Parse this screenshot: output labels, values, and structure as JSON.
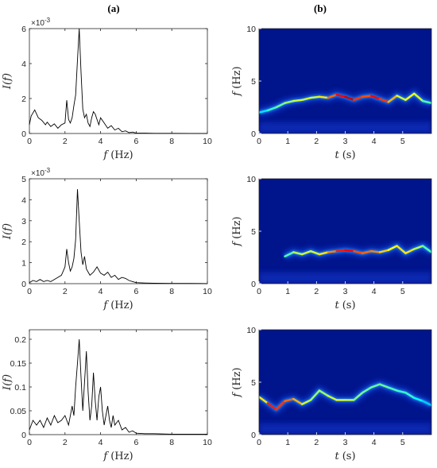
{
  "column_labels": {
    "left": "(a)",
    "right": "(b)"
  },
  "chart_data": [
    {
      "type": "line",
      "panel": "a1",
      "xlabel_sym": "f",
      "xlabel_unit": "(Hz)",
      "ylabel_sym": "I",
      "ylabel_arg": "(f)",
      "xlim": [
        0,
        10
      ],
      "ylim": [
        0,
        6
      ],
      "xticks": [
        "0",
        "2",
        "4",
        "6",
        "8",
        "10"
      ],
      "yticks": [
        "0",
        "2",
        "4",
        "6"
      ],
      "multiplier_base": "×10",
      "multiplier_exp": "-3",
      "line_color": "#000000",
      "x": [
        0,
        0.1,
        0.3,
        0.5,
        0.7,
        0.9,
        1.0,
        1.2,
        1.4,
        1.6,
        1.8,
        2.0,
        2.1,
        2.2,
        2.3,
        2.4,
        2.5,
        2.6,
        2.7,
        2.8,
        2.9,
        3.0,
        3.1,
        3.2,
        3.3,
        3.4,
        3.5,
        3.6,
        3.7,
        3.8,
        3.9,
        4.0,
        4.2,
        4.4,
        4.6,
        4.8,
        5.0,
        5.2,
        5.4,
        5.6,
        5.8,
        6.0,
        6.5,
        7,
        8,
        9,
        10
      ],
      "y": [
        0.5,
        1.0,
        1.35,
        0.9,
        0.75,
        0.5,
        0.65,
        0.4,
        0.55,
        0.3,
        0.5,
        0.6,
        1.9,
        0.8,
        0.6,
        0.9,
        1.6,
        2.2,
        4.2,
        6.0,
        3.5,
        1.4,
        0.9,
        1.1,
        0.6,
        0.4,
        0.9,
        1.25,
        1.1,
        0.8,
        0.5,
        0.9,
        0.6,
        0.3,
        0.45,
        0.2,
        0.3,
        0.1,
        0.15,
        0.05,
        0.08,
        0.02,
        0.02,
        0.01,
        0.01,
        0.005,
        0.005
      ]
    },
    {
      "type": "line",
      "panel": "a2",
      "xlabel_sym": "f",
      "xlabel_unit": "(Hz)",
      "ylabel_sym": "I",
      "ylabel_arg": "(f)",
      "xlim": [
        0,
        10
      ],
      "ylim": [
        0,
        5
      ],
      "xticks": [
        "0",
        "2",
        "4",
        "6",
        "8",
        "10"
      ],
      "yticks": [
        "0",
        "1",
        "2",
        "3",
        "4",
        "5"
      ],
      "multiplier_base": "×10",
      "multiplier_exp": "-3",
      "line_color": "#000000",
      "x": [
        0,
        0.2,
        0.4,
        0.6,
        0.8,
        1.0,
        1.2,
        1.4,
        1.6,
        1.8,
        2.0,
        2.1,
        2.2,
        2.3,
        2.4,
        2.5,
        2.6,
        2.7,
        2.8,
        2.9,
        3.0,
        3.1,
        3.2,
        3.4,
        3.6,
        3.8,
        4.0,
        4.2,
        4.4,
        4.6,
        4.8,
        5.0,
        5.2,
        5.4,
        5.6,
        5.8,
        6.0,
        6.5,
        7,
        8,
        9,
        10
      ],
      "y": [
        0.05,
        0.15,
        0.1,
        0.2,
        0.1,
        0.15,
        0.1,
        0.2,
        0.3,
        0.4,
        0.8,
        1.65,
        1.0,
        0.6,
        0.8,
        1.2,
        2.1,
        4.5,
        3.0,
        1.5,
        0.9,
        1.3,
        0.7,
        0.4,
        0.55,
        0.8,
        0.5,
        0.4,
        0.55,
        0.3,
        0.4,
        0.2,
        0.3,
        0.25,
        0.15,
        0.1,
        0.05,
        0.03,
        0.02,
        0.01,
        0.01,
        0.005
      ]
    },
    {
      "type": "line",
      "panel": "a3",
      "xlabel_sym": "f",
      "xlabel_unit": "(Hz)",
      "ylabel_sym": "I",
      "ylabel_arg": "(f)",
      "xlim": [
        0,
        10
      ],
      "ylim": [
        0,
        0.22
      ],
      "xticks": [
        "0",
        "2",
        "4",
        "6",
        "8",
        "10"
      ],
      "yticks": [
        "0",
        "0.05",
        "0.1",
        "0.15",
        "0.2"
      ],
      "ytick_values": [
        0,
        0.05,
        0.1,
        0.15,
        0.2
      ],
      "line_color": "#000000",
      "x": [
        0,
        0.2,
        0.4,
        0.6,
        0.8,
        1.0,
        1.2,
        1.4,
        1.6,
        1.8,
        2.0,
        2.2,
        2.4,
        2.5,
        2.6,
        2.7,
        2.8,
        2.9,
        3.0,
        3.1,
        3.2,
        3.3,
        3.4,
        3.5,
        3.6,
        3.7,
        3.8,
        3.9,
        4.0,
        4.1,
        4.2,
        4.3,
        4.4,
        4.5,
        4.6,
        4.7,
        4.8,
        5.0,
        5.2,
        5.4,
        5.6,
        5.8,
        6.0,
        6.5,
        7,
        8,
        9,
        10
      ],
      "y": [
        0.01,
        0.03,
        0.02,
        0.03,
        0.015,
        0.035,
        0.02,
        0.04,
        0.025,
        0.03,
        0.04,
        0.02,
        0.06,
        0.04,
        0.1,
        0.15,
        0.2,
        0.12,
        0.05,
        0.11,
        0.175,
        0.09,
        0.03,
        0.06,
        0.13,
        0.07,
        0.03,
        0.08,
        0.1,
        0.05,
        0.02,
        0.04,
        0.06,
        0.03,
        0.015,
        0.04,
        0.02,
        0.03,
        0.01,
        0.015,
        0.005,
        0.008,
        0.003,
        0.002,
        0.002,
        0.001,
        0.001,
        0.001
      ]
    },
    {
      "type": "heatmap",
      "panel": "b1",
      "xlabel_sym": "t",
      "xlabel_unit": "(s)",
      "ylabel_sym": "f",
      "ylabel_unit": "(Hz)",
      "xlim": [
        0,
        6
      ],
      "ylim": [
        0,
        10
      ],
      "xticks": [
        "0",
        "1",
        "2",
        "3",
        "4",
        "5"
      ],
      "yticks": [
        "0",
        "5",
        "10"
      ],
      "ridge_t": [
        0,
        0.3,
        0.6,
        0.9,
        1.2,
        1.5,
        1.8,
        2.1,
        2.4,
        2.7,
        3.0,
        3.3,
        3.6,
        3.9,
        4.2,
        4.5,
        4.8,
        5.1,
        5.4,
        5.7,
        6.0
      ],
      "ridge_f": [
        2.0,
        2.2,
        2.5,
        2.9,
        3.1,
        3.2,
        3.4,
        3.5,
        3.4,
        3.7,
        3.5,
        3.2,
        3.5,
        3.6,
        3.3,
        3.0,
        3.6,
        3.2,
        3.8,
        3.1,
        2.9
      ],
      "ridge_intensity": [
        0.3,
        0.4,
        0.45,
        0.5,
        0.55,
        0.6,
        0.55,
        0.6,
        0.7,
        0.85,
        0.9,
        0.95,
        0.7,
        0.9,
        0.85,
        0.8,
        0.6,
        0.55,
        0.7,
        0.5,
        0.4
      ]
    },
    {
      "type": "heatmap",
      "panel": "b2",
      "xlabel_sym": "t",
      "xlabel_unit": "(s)",
      "ylabel_sym": "f",
      "ylabel_unit": "(Hz)",
      "xlim": [
        0,
        6
      ],
      "ylim": [
        0,
        10
      ],
      "xticks": [
        "0",
        "1",
        "2",
        "3",
        "4",
        "5"
      ],
      "yticks": [
        "0",
        "5",
        "10"
      ],
      "ridge_t": [
        0.9,
        1.2,
        1.5,
        1.8,
        2.1,
        2.4,
        2.7,
        3.0,
        3.3,
        3.6,
        3.9,
        4.2,
        4.5,
        4.8,
        5.1,
        5.4,
        5.7,
        6.0
      ],
      "ridge_f": [
        2.6,
        3.0,
        2.8,
        3.1,
        2.8,
        3.0,
        3.1,
        3.2,
        3.1,
        2.9,
        3.1,
        3.0,
        3.2,
        3.6,
        2.9,
        3.3,
        3.6,
        3.0
      ],
      "ridge_intensity": [
        0.4,
        0.5,
        0.6,
        0.55,
        0.6,
        0.7,
        0.8,
        0.9,
        0.85,
        0.75,
        0.8,
        0.7,
        0.65,
        0.6,
        0.7,
        0.6,
        0.5,
        0.4
      ]
    },
    {
      "type": "heatmap",
      "panel": "b3",
      "xlabel_sym": "t",
      "xlabel_unit": "(s)",
      "ylabel_sym": "f",
      "ylabel_unit": "(Hz)",
      "xlim": [
        0,
        6
      ],
      "ylim": [
        0,
        10
      ],
      "xticks": [
        "0",
        "1",
        "2",
        "3",
        "4",
        "5"
      ],
      "yticks": [
        "0",
        "5",
        "10"
      ],
      "ridge_t": [
        0,
        0.3,
        0.6,
        0.9,
        1.2,
        1.5,
        1.8,
        2.1,
        2.4,
        2.7,
        3.0,
        3.3,
        3.6,
        3.9,
        4.2,
        4.5,
        4.8,
        5.1,
        5.4,
        5.7,
        6.0
      ],
      "ridge_f": [
        3.6,
        3.0,
        2.4,
        3.2,
        3.4,
        2.9,
        3.3,
        4.2,
        3.7,
        3.3,
        3.3,
        3.3,
        4.0,
        4.5,
        4.8,
        4.5,
        4.2,
        4.0,
        3.5,
        3.2,
        2.8
      ],
      "ridge_intensity": [
        0.5,
        0.8,
        0.9,
        0.75,
        0.8,
        0.6,
        0.55,
        0.5,
        0.55,
        0.6,
        0.6,
        0.55,
        0.45,
        0.5,
        0.45,
        0.5,
        0.4,
        0.45,
        0.4,
        0.35,
        0.3
      ]
    }
  ]
}
